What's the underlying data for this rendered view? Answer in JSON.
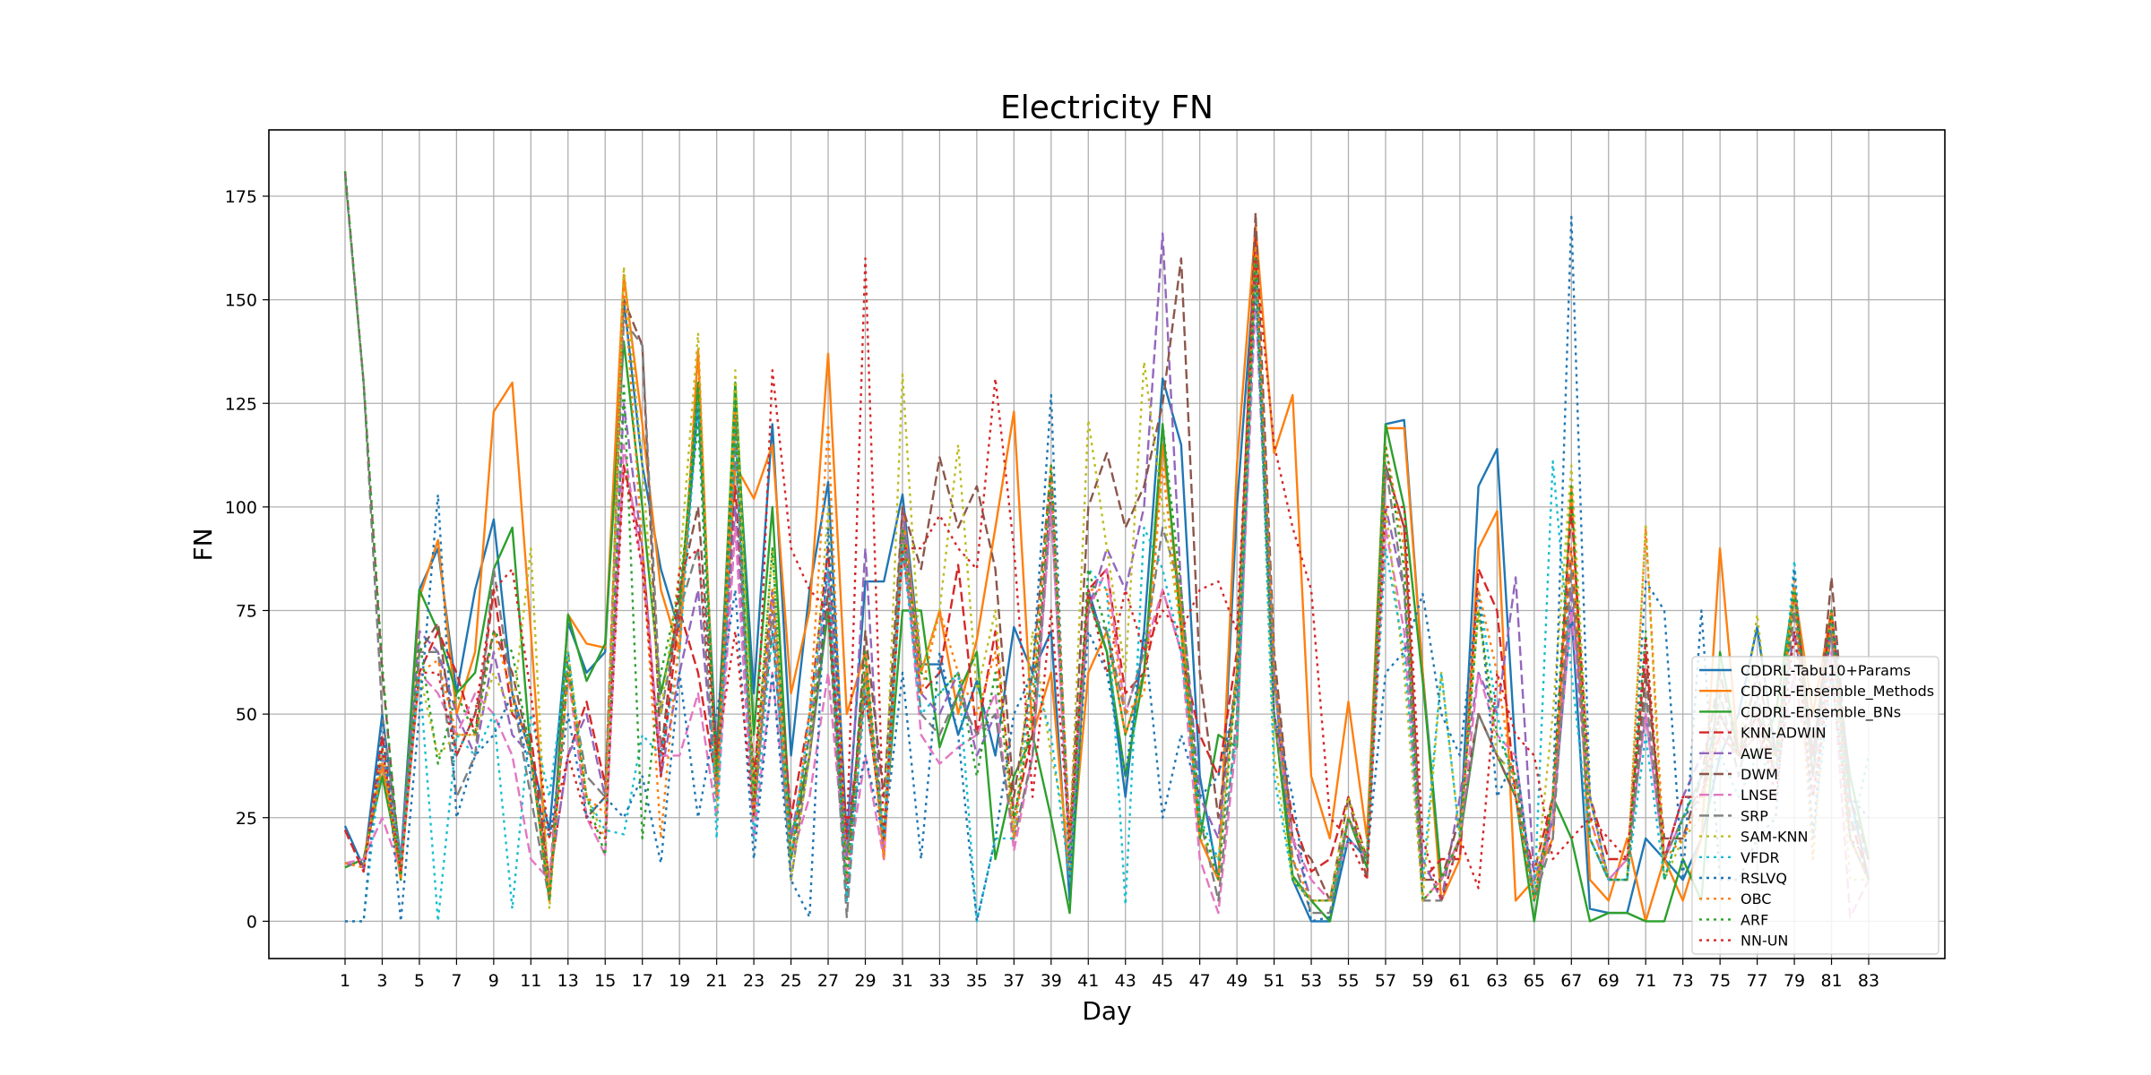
{
  "chart_data": {
    "type": "line",
    "title": "Electricity FN",
    "xlabel": "Day",
    "ylabel": "FN",
    "xlim": [
      -3.1,
      87.1
    ],
    "ylim": [
      -9,
      191
    ],
    "grid": true,
    "legend_position": "lower right",
    "x_ticks": [
      1,
      3,
      5,
      7,
      9,
      11,
      13,
      15,
      17,
      19,
      21,
      23,
      25,
      27,
      29,
      31,
      33,
      35,
      37,
      39,
      41,
      43,
      45,
      47,
      49,
      51,
      53,
      55,
      57,
      59,
      61,
      63,
      65,
      67,
      69,
      71,
      73,
      75,
      77,
      79,
      81,
      83
    ],
    "y_ticks": [
      0,
      25,
      50,
      75,
      100,
      125,
      150,
      175
    ],
    "x": [
      1,
      2,
      3,
      4,
      5,
      6,
      7,
      8,
      9,
      10,
      11,
      12,
      13,
      14,
      15,
      16,
      17,
      18,
      19,
      20,
      21,
      22,
      23,
      24,
      25,
      26,
      27,
      28,
      29,
      30,
      31,
      32,
      33,
      34,
      35,
      36,
      37,
      38,
      39,
      40,
      41,
      42,
      43,
      44,
      45,
      46,
      47,
      48,
      49,
      50,
      51,
      52,
      53,
      54,
      55,
      56,
      57,
      58,
      59,
      60,
      61,
      62,
      63,
      64,
      65,
      66,
      67,
      68,
      69,
      70,
      71,
      72,
      73,
      74,
      75,
      76,
      77,
      78,
      79,
      80,
      81,
      82,
      83
    ],
    "series": [
      {
        "name": "CDDRL-Tabu10+Params",
        "color": "#1f77b4",
        "dash": "solid",
        "values": [
          23,
          13,
          50,
          15,
          80,
          90,
          55,
          80,
          97,
          55,
          40,
          22,
          72,
          60,
          65,
          150,
          110,
          85,
          70,
          125,
          40,
          125,
          55,
          120,
          40,
          80,
          106,
          20,
          82,
          82,
          103,
          62,
          62,
          45,
          58,
          40,
          71,
          60,
          70,
          5,
          80,
          65,
          30,
          70,
          131,
          115,
          35,
          10,
          100,
          160,
          60,
          10,
          0,
          0,
          20,
          15,
          120,
          121,
          60,
          10,
          20,
          105,
          114,
          40,
          5,
          25,
          75,
          3,
          2,
          2,
          20,
          15,
          10,
          20,
          40,
          50,
          71,
          40,
          80,
          40,
          75,
          30,
          10
        ]
      },
      {
        "name": "CDDRL-Ensemble_Methods",
        "color": "#ff7f0e",
        "dash": "solid",
        "values": [
          13,
          15,
          38,
          10,
          78,
          92,
          50,
          65,
          123,
          130,
          70,
          5,
          74,
          67,
          66,
          156,
          120,
          80,
          65,
          138,
          30,
          110,
          102,
          115,
          55,
          75,
          137,
          50,
          65,
          15,
          100,
          60,
          75,
          50,
          68,
          95,
          123,
          45,
          60,
          10,
          60,
          70,
          45,
          60,
          115,
          75,
          20,
          10,
          110,
          168,
          113,
          127,
          35,
          20,
          53,
          20,
          119,
          119,
          60,
          5,
          15,
          90,
          99,
          5,
          10,
          20,
          105,
          10,
          5,
          20,
          0,
          15,
          5,
          20,
          90,
          40,
          50,
          40,
          80,
          50,
          75,
          20,
          10
        ]
      },
      {
        "name": "CDDRL-Ensemble_BNs",
        "color": "#2ca02c",
        "dash": "solid",
        "values": [
          13,
          15,
          35,
          13,
          80,
          70,
          55,
          60,
          85,
          95,
          40,
          5,
          74,
          58,
          67,
          140,
          100,
          55,
          75,
          130,
          35,
          130,
          45,
          100,
          20,
          40,
          75,
          15,
          60,
          20,
          75,
          75,
          42,
          55,
          65,
          15,
          35,
          45,
          25,
          2,
          78,
          65,
          35,
          60,
          120,
          70,
          20,
          45,
          42,
          160,
          50,
          11,
          5,
          0,
          25,
          13,
          120,
          100,
          58,
          10,
          20,
          50,
          40,
          30,
          0,
          30,
          20,
          0,
          2,
          2,
          0,
          0,
          15,
          5,
          65,
          40,
          40,
          50,
          80,
          40,
          70,
          35,
          15
        ]
      },
      {
        "name": "KNN-ADWIN",
        "color": "#d62728",
        "dash": "dashed",
        "values": [
          22,
          12,
          45,
          12,
          60,
          70,
          60,
          45,
          80,
          50,
          45,
          10,
          40,
          53,
          33,
          110,
          90,
          35,
          75,
          60,
          33,
          105,
          35,
          80,
          25,
          50,
          90,
          20,
          55,
          20,
          90,
          55,
          60,
          86,
          45,
          70,
          25,
          45,
          105,
          20,
          80,
          85,
          55,
          60,
          80,
          65,
          45,
          35,
          65,
          165,
          50,
          25,
          12,
          15,
          30,
          15,
          110,
          95,
          10,
          15,
          15,
          85,
          75,
          30,
          12,
          30,
          100,
          30,
          15,
          15,
          65,
          15,
          30,
          30,
          45,
          40,
          50,
          35,
          80,
          40,
          75,
          25,
          10
        ]
      },
      {
        "name": "AWE",
        "color": "#9467bd",
        "dash": "dashed",
        "values": [
          14,
          13,
          40,
          15,
          70,
          65,
          50,
          40,
          65,
          45,
          40,
          10,
          40,
          50,
          30,
          125,
          90,
          35,
          60,
          80,
          30,
          100,
          25,
          80,
          20,
          45,
          85,
          15,
          90,
          15,
          100,
          55,
          50,
          60,
          40,
          50,
          20,
          40,
          100,
          15,
          75,
          90,
          80,
          100,
          166,
          80,
          30,
          20,
          60,
          160,
          60,
          20,
          5,
          5,
          25,
          15,
          100,
          80,
          15,
          5,
          30,
          60,
          50,
          83,
          10,
          25,
          80,
          30,
          10,
          15,
          50,
          15,
          30,
          40,
          50,
          40,
          50,
          40,
          70,
          40,
          70,
          20,
          10
        ]
      },
      {
        "name": "DWM",
        "color": "#8c564b",
        "dash": "dashed",
        "values": [
          181,
          130,
          60,
          12,
          65,
          72,
          40,
          50,
          70,
          60,
          40,
          10,
          65,
          25,
          30,
          150,
          139,
          40,
          80,
          100,
          40,
          120,
          30,
          70,
          15,
          40,
          80,
          5,
          70,
          30,
          100,
          85,
          112,
          95,
          105,
          85,
          30,
          60,
          110,
          20,
          100,
          113,
          95,
          105,
          125,
          160,
          60,
          25,
          60,
          171,
          65,
          20,
          15,
          5,
          30,
          10,
          110,
          95,
          10,
          10,
          25,
          50,
          40,
          30,
          5,
          30,
          90,
          20,
          10,
          10,
          60,
          20,
          20,
          35,
          60,
          40,
          60,
          40,
          80,
          35,
          83,
          30,
          15
        ]
      },
      {
        "name": "LNSE",
        "color": "#e377c2",
        "dash": "dashed",
        "values": [
          14,
          15,
          25,
          12,
          60,
          55,
          45,
          55,
          50,
          40,
          15,
          10,
          60,
          25,
          16,
          115,
          85,
          40,
          40,
          55,
          25,
          95,
          20,
          60,
          15,
          30,
          60,
          10,
          40,
          15,
          95,
          45,
          38,
          42,
          45,
          55,
          17,
          40,
          100,
          15,
          75,
          85,
          50,
          65,
          80,
          65,
          15,
          2,
          45,
          150,
          50,
          20,
          10,
          5,
          20,
          15,
          95,
          70,
          5,
          10,
          20,
          60,
          45,
          40,
          5,
          25,
          75,
          25,
          10,
          15,
          50,
          15,
          25,
          35,
          45,
          40,
          45,
          35,
          60,
          30,
          65,
          1,
          10
        ]
      },
      {
        "name": "SRP",
        "color": "#7f7f7f",
        "dash": "dashed",
        "values": [
          180,
          130,
          50,
          15,
          65,
          65,
          30,
          40,
          85,
          55,
          30,
          5,
          60,
          35,
          30,
          145,
          139,
          50,
          75,
          90,
          30,
          115,
          25,
          75,
          10,
          40,
          75,
          1,
          60,
          20,
          95,
          50,
          45,
          55,
          45,
          50,
          20,
          40,
          105,
          20,
          75,
          70,
          50,
          65,
          95,
          80,
          25,
          5,
          50,
          160,
          60,
          15,
          2,
          2,
          25,
          15,
          110,
          80,
          5,
          5,
          20,
          50,
          40,
          35,
          5,
          20,
          85,
          20,
          10,
          10,
          55,
          15,
          25,
          30,
          55,
          35,
          55,
          35,
          75,
          35,
          70,
          25,
          15
        ]
      },
      {
        "name": "SAM-KNN",
        "color": "#bcbd22",
        "dash": "dotted",
        "values": [
          14,
          13,
          42,
          12,
          60,
          40,
          45,
          45,
          60,
          50,
          90,
          3,
          65,
          30,
          20,
          158,
          110,
          50,
          85,
          142,
          25,
          133,
          30,
          90,
          10,
          40,
          100,
          10,
          60,
          20,
          132,
          60,
          75,
          115,
          55,
          75,
          20,
          70,
          40,
          20,
          121,
          90,
          60,
          135,
          100,
          70,
          20,
          15,
          60,
          160,
          40,
          10,
          5,
          5,
          30,
          15,
          100,
          60,
          5,
          60,
          20,
          75,
          40,
          35,
          5,
          50,
          110,
          30,
          10,
          10,
          96,
          10,
          20,
          25,
          50,
          40,
          74,
          35,
          80,
          15,
          75,
          10,
          10
        ]
      },
      {
        "name": "VFDR",
        "color": "#17becf",
        "dash": "dotted",
        "values": [
          0,
          0,
          42,
          15,
          60,
          0,
          45,
          40,
          50,
          3,
          50,
          30,
          65,
          30,
          22,
          21,
          45,
          40,
          65,
          125,
          20,
          120,
          20,
          70,
          15,
          50,
          85,
          5,
          55,
          20,
          90,
          50,
          55,
          60,
          0,
          20,
          20,
          60,
          45,
          10,
          85,
          80,
          4,
          95,
          85,
          65,
          25,
          15,
          45,
          160,
          35,
          10,
          5,
          5,
          20,
          15,
          90,
          65,
          10,
          60,
          20,
          80,
          50,
          30,
          5,
          111,
          60,
          20,
          10,
          10,
          45,
          10,
          25,
          35,
          40,
          30,
          40,
          35,
          87,
          20,
          60,
          20,
          40
        ]
      },
      {
        "name": "RSLVQ",
        "color": "#1f77b4",
        "dash": "dotted",
        "values": [
          0,
          0,
          50,
          0,
          50,
          103,
          25,
          40,
          45,
          55,
          35,
          20,
          50,
          25,
          30,
          25,
          35,
          14,
          60,
          25,
          50,
          80,
          15,
          60,
          10,
          1,
          95,
          20,
          40,
          20,
          60,
          15,
          65,
          45,
          0,
          20,
          50,
          60,
          127,
          10,
          70,
          60,
          35,
          70,
          25,
          45,
          30,
          35,
          55,
          155,
          50,
          30,
          0,
          1,
          20,
          15,
          60,
          65,
          79,
          50,
          40,
          80,
          30,
          40,
          5,
          30,
          170,
          30,
          10,
          10,
          82,
          75,
          10,
          75,
          10,
          10,
          20,
          25,
          85,
          20,
          75,
          30,
          25
        ]
      },
      {
        "name": "OBC",
        "color": "#ff7f0e",
        "dash": "dotted",
        "values": [
          14,
          13,
          38,
          12,
          60,
          63,
          45,
          45,
          70,
          55,
          40,
          5,
          60,
          30,
          26,
          155,
          90,
          20,
          70,
          137,
          30,
          123,
          25,
          80,
          15,
          50,
          120,
          10,
          60,
          15,
          95,
          55,
          75,
          60,
          50,
          65,
          20,
          55,
          110,
          20,
          80,
          80,
          50,
          55,
          110,
          70,
          20,
          10,
          60,
          163,
          60,
          15,
          5,
          5,
          25,
          15,
          115,
          90,
          5,
          10,
          20,
          80,
          60,
          30,
          5,
          30,
          90,
          25,
          10,
          10,
          95,
          15,
          20,
          30,
          45,
          40,
          45,
          40,
          82,
          15,
          75,
          20,
          10
        ]
      },
      {
        "name": "ARF",
        "color": "#2ca02c",
        "dash": "dotted",
        "values": [
          181,
          130,
          62,
          10,
          68,
          38,
          55,
          45,
          70,
          65,
          40,
          5,
          62,
          30,
          16,
          130,
          20,
          60,
          80,
          120,
          35,
          120,
          30,
          90,
          15,
          45,
          75,
          10,
          65,
          20,
          95,
          60,
          55,
          60,
          35,
          60,
          25,
          50,
          110,
          15,
          85,
          70,
          45,
          60,
          120,
          80,
          25,
          10,
          60,
          160,
          50,
          10,
          5,
          5,
          25,
          15,
          115,
          85,
          5,
          10,
          20,
          75,
          45,
          35,
          5,
          30,
          105,
          20,
          10,
          10,
          70,
          10,
          25,
          35,
          50,
          40,
          50,
          40,
          80,
          35,
          75,
          20,
          10
        ]
      },
      {
        "name": "NN-UN",
        "color": "#d62728",
        "dash": "dotted",
        "values": [
          22,
          12,
          42,
          12,
          60,
          60,
          40,
          50,
          80,
          85,
          55,
          20,
          40,
          25,
          20,
          110,
          85,
          35,
          85,
          90,
          40,
          70,
          25,
          133,
          90,
          80,
          75,
          20,
          160,
          20,
          90,
          90,
          98,
          90,
          85,
          131,
          90,
          30,
          75,
          20,
          80,
          60,
          80,
          65,
          75,
          70,
          80,
          82,
          70,
          160,
          115,
          95,
          80,
          25,
          20,
          10,
          100,
          100,
          20,
          5,
          20,
          8,
          60,
          45,
          40,
          15,
          20,
          25,
          20,
          15,
          68,
          15,
          30,
          30,
          50,
          40,
          50,
          30,
          70,
          30,
          60,
          20,
          15
        ]
      }
    ]
  }
}
